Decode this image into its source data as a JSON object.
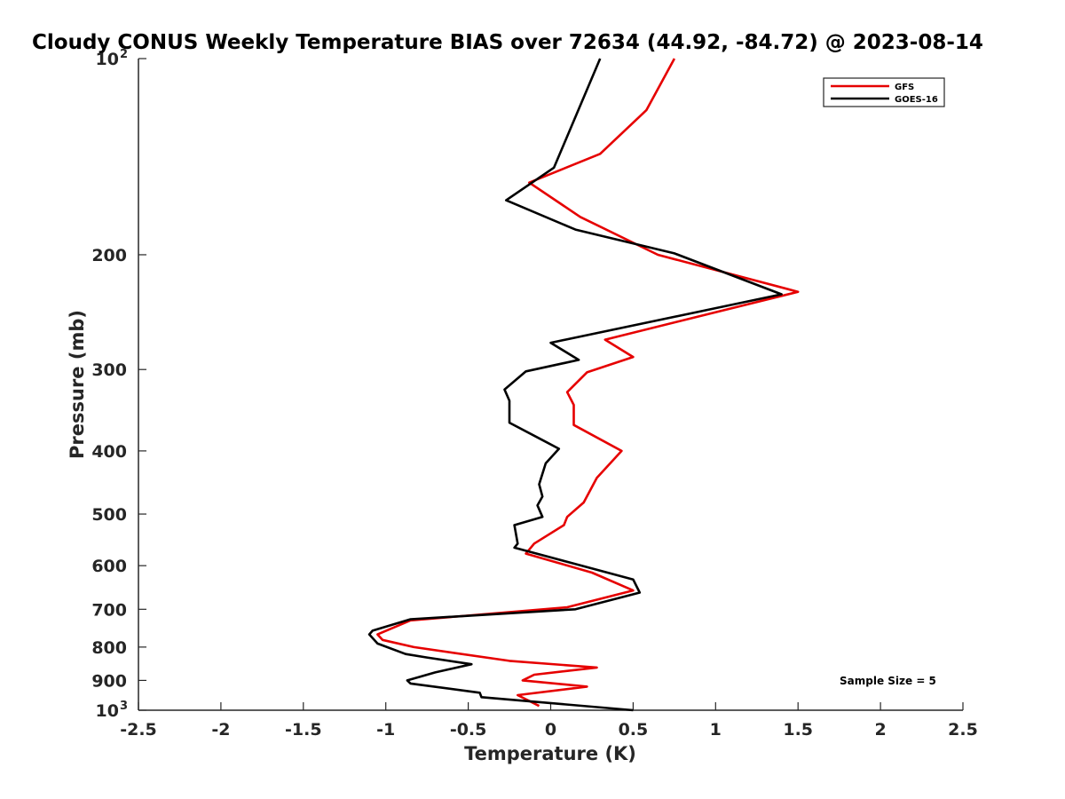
{
  "chart_data": {
    "type": "line",
    "title": "Cloudy CONUS Weekly Temperature BIAS over 72634 (44.92, -84.72) @ 2023-08-14",
    "xlabel": "Temperature (K)",
    "ylabel": "Pressure (mb)",
    "xlim": [
      -2.5,
      2.5
    ],
    "ylim": [
      100,
      1000
    ],
    "y_scale": "log",
    "y_reversed": true,
    "grid": false,
    "legend_position": "top-right",
    "x_ticks": [
      "-2.5",
      "-2",
      "-1.5",
      "-1",
      "-0.5",
      "0",
      "0.5",
      "1",
      "1.5",
      "2",
      "2.5"
    ],
    "y_ticks": [
      {
        "value": 100,
        "label": "10",
        "sup": "2"
      },
      {
        "value": 200,
        "label": "200"
      },
      {
        "value": 300,
        "label": "300"
      },
      {
        "value": 400,
        "label": "400"
      },
      {
        "value": 500,
        "label": "500"
      },
      {
        "value": 600,
        "label": "600"
      },
      {
        "value": 700,
        "label": "700"
      },
      {
        "value": 800,
        "label": "800"
      },
      {
        "value": 900,
        "label": "900"
      },
      {
        "value": 1000,
        "label": "10",
        "sup": "3"
      }
    ],
    "annotation": "Sample Size = 5",
    "series": [
      {
        "name": "GFS",
        "color": "#e60000",
        "points": [
          [
            0.75,
            100
          ],
          [
            0.58,
            120
          ],
          [
            0.3,
            140
          ],
          [
            -0.13,
            155
          ],
          [
            0.18,
            175
          ],
          [
            0.65,
            200
          ],
          [
            1.5,
            228
          ],
          [
            0.33,
            270
          ],
          [
            0.5,
            287
          ],
          [
            0.22,
            303
          ],
          [
            0.1,
            325
          ],
          [
            0.14,
            340
          ],
          [
            0.14,
            365
          ],
          [
            0.43,
            400
          ],
          [
            0.28,
            440
          ],
          [
            0.2,
            480
          ],
          [
            0.1,
            505
          ],
          [
            0.08,
            520
          ],
          [
            -0.1,
            555
          ],
          [
            -0.15,
            575
          ],
          [
            0.25,
            615
          ],
          [
            0.5,
            655
          ],
          [
            0.1,
            695
          ],
          [
            -0.85,
            728
          ],
          [
            -1.05,
            765
          ],
          [
            -1.02,
            780
          ],
          [
            -0.83,
            800
          ],
          [
            -0.25,
            840
          ],
          [
            0.28,
            860
          ],
          [
            -0.1,
            882
          ],
          [
            -0.17,
            900
          ],
          [
            0.22,
            920
          ],
          [
            -0.2,
            948
          ],
          [
            -0.07,
            985
          ]
        ]
      },
      {
        "name": "GOES-16",
        "color": "#000000",
        "points": [
          [
            0.3,
            100
          ],
          [
            0.02,
            147
          ],
          [
            -0.27,
            165
          ],
          [
            0.15,
            183
          ],
          [
            0.75,
            199
          ],
          [
            1.4,
            230
          ],
          [
            0.0,
            273
          ],
          [
            0.17,
            290
          ],
          [
            -0.15,
            302
          ],
          [
            -0.28,
            322
          ],
          [
            -0.25,
            335
          ],
          [
            -0.25,
            362
          ],
          [
            -0.05,
            385
          ],
          [
            0.05,
            397
          ],
          [
            -0.03,
            418
          ],
          [
            -0.07,
            450
          ],
          [
            -0.05,
            470
          ],
          [
            -0.08,
            485
          ],
          [
            -0.05,
            505
          ],
          [
            -0.22,
            520
          ],
          [
            -0.2,
            555
          ],
          [
            -0.22,
            563
          ],
          [
            0.5,
            630
          ],
          [
            0.54,
            660
          ],
          [
            0.15,
            700
          ],
          [
            -0.85,
            725
          ],
          [
            -1.08,
            755
          ],
          [
            -1.1,
            765
          ],
          [
            -1.05,
            790
          ],
          [
            -0.88,
            820
          ],
          [
            -0.75,
            830
          ],
          [
            -0.48,
            850
          ],
          [
            -0.7,
            875
          ],
          [
            -0.87,
            900
          ],
          [
            -0.85,
            910
          ],
          [
            -0.43,
            940
          ],
          [
            -0.42,
            955
          ],
          [
            0.5,
            1000
          ]
        ]
      }
    ]
  }
}
